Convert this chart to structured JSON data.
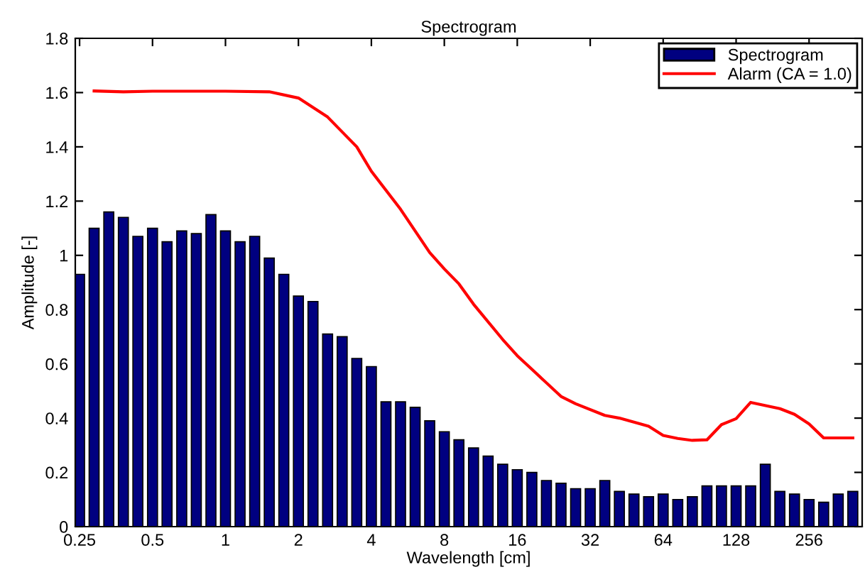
{
  "chart_data": {
    "type": "bar",
    "title": "Spectrogram",
    "xlabel": "Wavelength [cm]",
    "ylabel": "Amplitude [-]",
    "log": "x",
    "xlim": [
      0.24,
      424
    ],
    "ylim": [
      0,
      1.8
    ],
    "xticks": [
      0.25,
      0.5,
      1,
      2,
      4,
      8,
      16,
      32,
      64,
      128,
      256
    ],
    "yticks": [
      0,
      0.2,
      0.4,
      0.6,
      0.8,
      1,
      1.2,
      1.4,
      1.6,
      1.8
    ],
    "grid": false,
    "legend": "top right",
    "series": [
      {
        "name": "Spectrogram",
        "color": "#000080",
        "x": [
          0.25,
          0.287,
          0.33,
          0.379,
          0.435,
          0.5,
          0.574,
          0.66,
          0.758,
          0.871,
          1,
          1.149,
          1.32,
          1.516,
          1.741,
          2,
          2.297,
          2.639,
          3.031,
          3.482,
          4,
          4.595,
          5.278,
          6.063,
          6.964,
          8,
          9.19,
          10.56,
          12.13,
          13.93,
          16,
          18.38,
          21.11,
          24.25,
          27.86,
          32,
          36.76,
          42.22,
          48.5,
          55.72,
          64,
          73.52,
          84.45,
          97.01,
          111.4,
          128,
          147,
          168.9,
          194,
          222.9,
          256,
          294.1,
          337.8,
          388
        ],
        "values": [
          0.93,
          1.1,
          1.16,
          1.14,
          1.07,
          1.1,
          1.05,
          1.09,
          1.08,
          1.15,
          1.09,
          1.05,
          1.07,
          0.99,
          0.93,
          0.85,
          0.83,
          0.71,
          0.7,
          0.62,
          0.59,
          0.46,
          0.46,
          0.44,
          0.39,
          0.35,
          0.32,
          0.29,
          0.26,
          0.23,
          0.21,
          0.2,
          0.17,
          0.16,
          0.14,
          0.14,
          0.17,
          0.13,
          0.12,
          0.11,
          0.12,
          0.1,
          0.11,
          0.15,
          0.15,
          0.15,
          0.15,
          0.23,
          0.13,
          0.12,
          0.1,
          0.09,
          0.12,
          0.13
        ]
      },
      {
        "name": "Alarm (CA = 1.0)",
        "type": "line",
        "color": "#ff0000",
        "x": [
          0.287,
          0.379,
          0.5,
          1,
          1.516,
          2,
          2.639,
          3.482,
          4,
          5.278,
          6.964,
          8,
          9.19,
          10.56,
          13.93,
          16,
          18.38,
          24.25,
          27.86,
          36.76,
          42.22,
          48.5,
          55.72,
          64,
          73.52,
          84.45,
          97.01,
          111.4,
          128,
          147,
          194,
          222.9,
          256,
          294.1,
          388
        ],
        "values": [
          1.606,
          1.603,
          1.605,
          1.605,
          1.603,
          1.58,
          1.51,
          1.4,
          1.31,
          1.17,
          1.01,
          0.95,
          0.895,
          0.82,
          0.69,
          0.63,
          0.58,
          0.48,
          0.453,
          0.41,
          0.4,
          0.385,
          0.37,
          0.336,
          0.325,
          0.318,
          0.32,
          0.376,
          0.398,
          0.458,
          0.435,
          0.414,
          0.379,
          0.327,
          0.327
        ]
      }
    ]
  }
}
